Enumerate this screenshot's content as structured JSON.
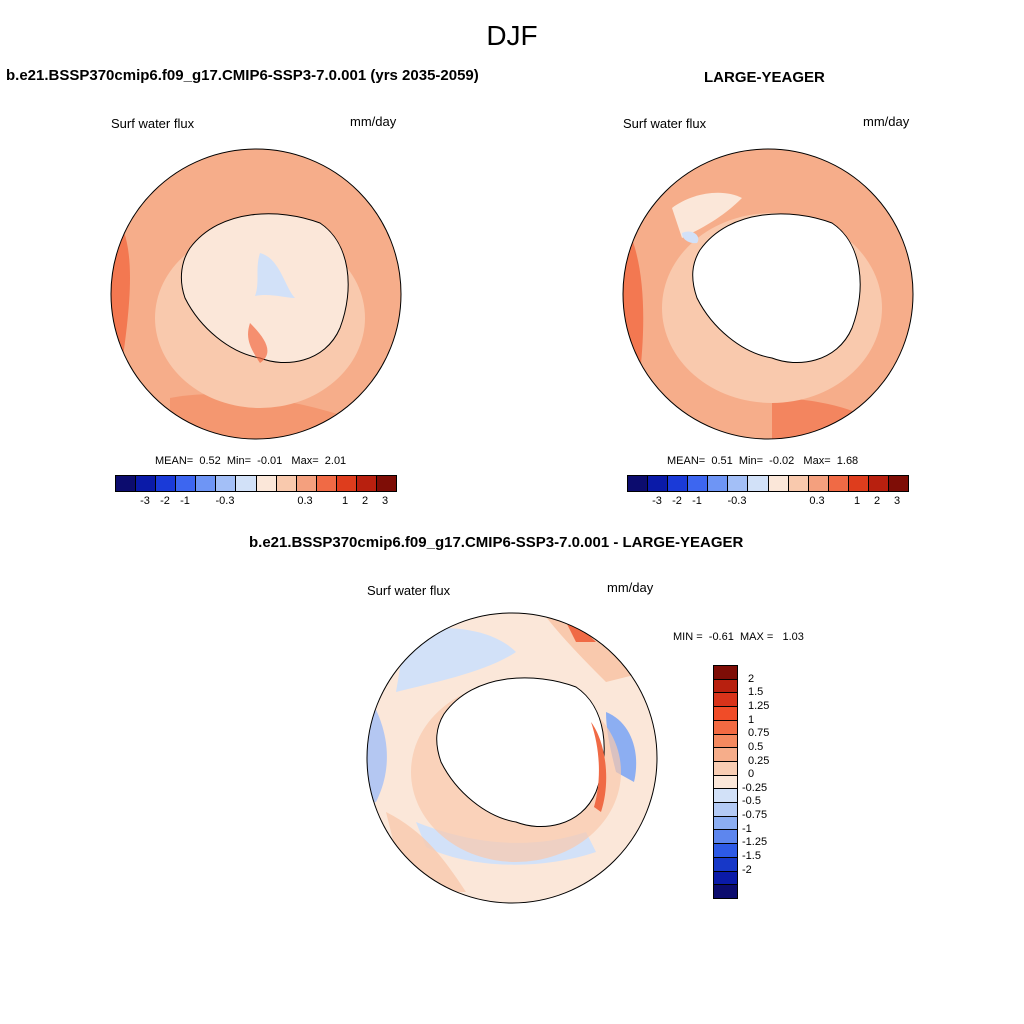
{
  "season": "DJF",
  "panels": [
    {
      "title": "b.e21.BSSP370cmip6.f09_g17.CMIP6-SSP3-7.0.001 (yrs 2035-2059)",
      "variable": "Surf water flux",
      "units": "mm/day",
      "stats": {
        "mean_label": "MEAN=",
        "mean": "0.52",
        "min_label": "Min=",
        "min": "-0.01",
        "max_label": "Max=",
        "max": "2.01"
      }
    },
    {
      "title": "LARGE-YEAGER",
      "variable": "Surf water flux",
      "units": "mm/day",
      "stats": {
        "mean_label": "MEAN=",
        "mean": "0.51",
        "min_label": "Min=",
        "min": "-0.02",
        "max_label": "Max=",
        "max": "1.68"
      }
    },
    {
      "title": "b.e21.BSSP370cmip6.f09_g17.CMIP6-SSP3-7.0.001 - LARGE-YEAGER",
      "variable": "Surf water flux",
      "units": "mm/day",
      "stats": {
        "min_label": "MIN =",
        "min": "-0.61",
        "max_label": "MAX =",
        "max": "1.03"
      }
    }
  ],
  "colorbar_main": {
    "colors": [
      "#0c0c6e",
      "#0a1aa8",
      "#1a3ad8",
      "#3d66f0",
      "#6e95f5",
      "#a3bff7",
      "#d2e1f8",
      "#fbe7d9",
      "#f9c9ad",
      "#f4a07e",
      "#f06a45",
      "#de3d1d",
      "#b8200f",
      "#7e0d06"
    ],
    "ticks": [
      "-3",
      "-2",
      "-1",
      "-0.3",
      "0.3",
      "1",
      "2",
      "3"
    ]
  },
  "colorbar_diff": {
    "colors": [
      "#7e0d06",
      "#b8200f",
      "#d8331a",
      "#f04c28",
      "#f26a42",
      "#f4895f",
      "#f6ad8a",
      "#f9cdb3",
      "#fbe7d9",
      "#d2e1f8",
      "#b3caf5",
      "#8caef2",
      "#5d86ee",
      "#2d5ae6",
      "#1738c8",
      "#0a1aa8",
      "#0c0c6e"
    ],
    "ticks": [
      "2",
      "1.5",
      "1.25",
      "1",
      "0.75",
      "0.5",
      "0.25",
      "0",
      "-0.25",
      "-0.5",
      "-0.75",
      "-1",
      "-1.25",
      "-1.5",
      "-2"
    ]
  },
  "colors": {
    "ocean_mid": "#f6ad8a",
    "ocean_strong": "#f26a42",
    "land_light": "#fbe7d9",
    "neg_light": "#d2e1f8",
    "neg_mid": "#a3bff7"
  }
}
